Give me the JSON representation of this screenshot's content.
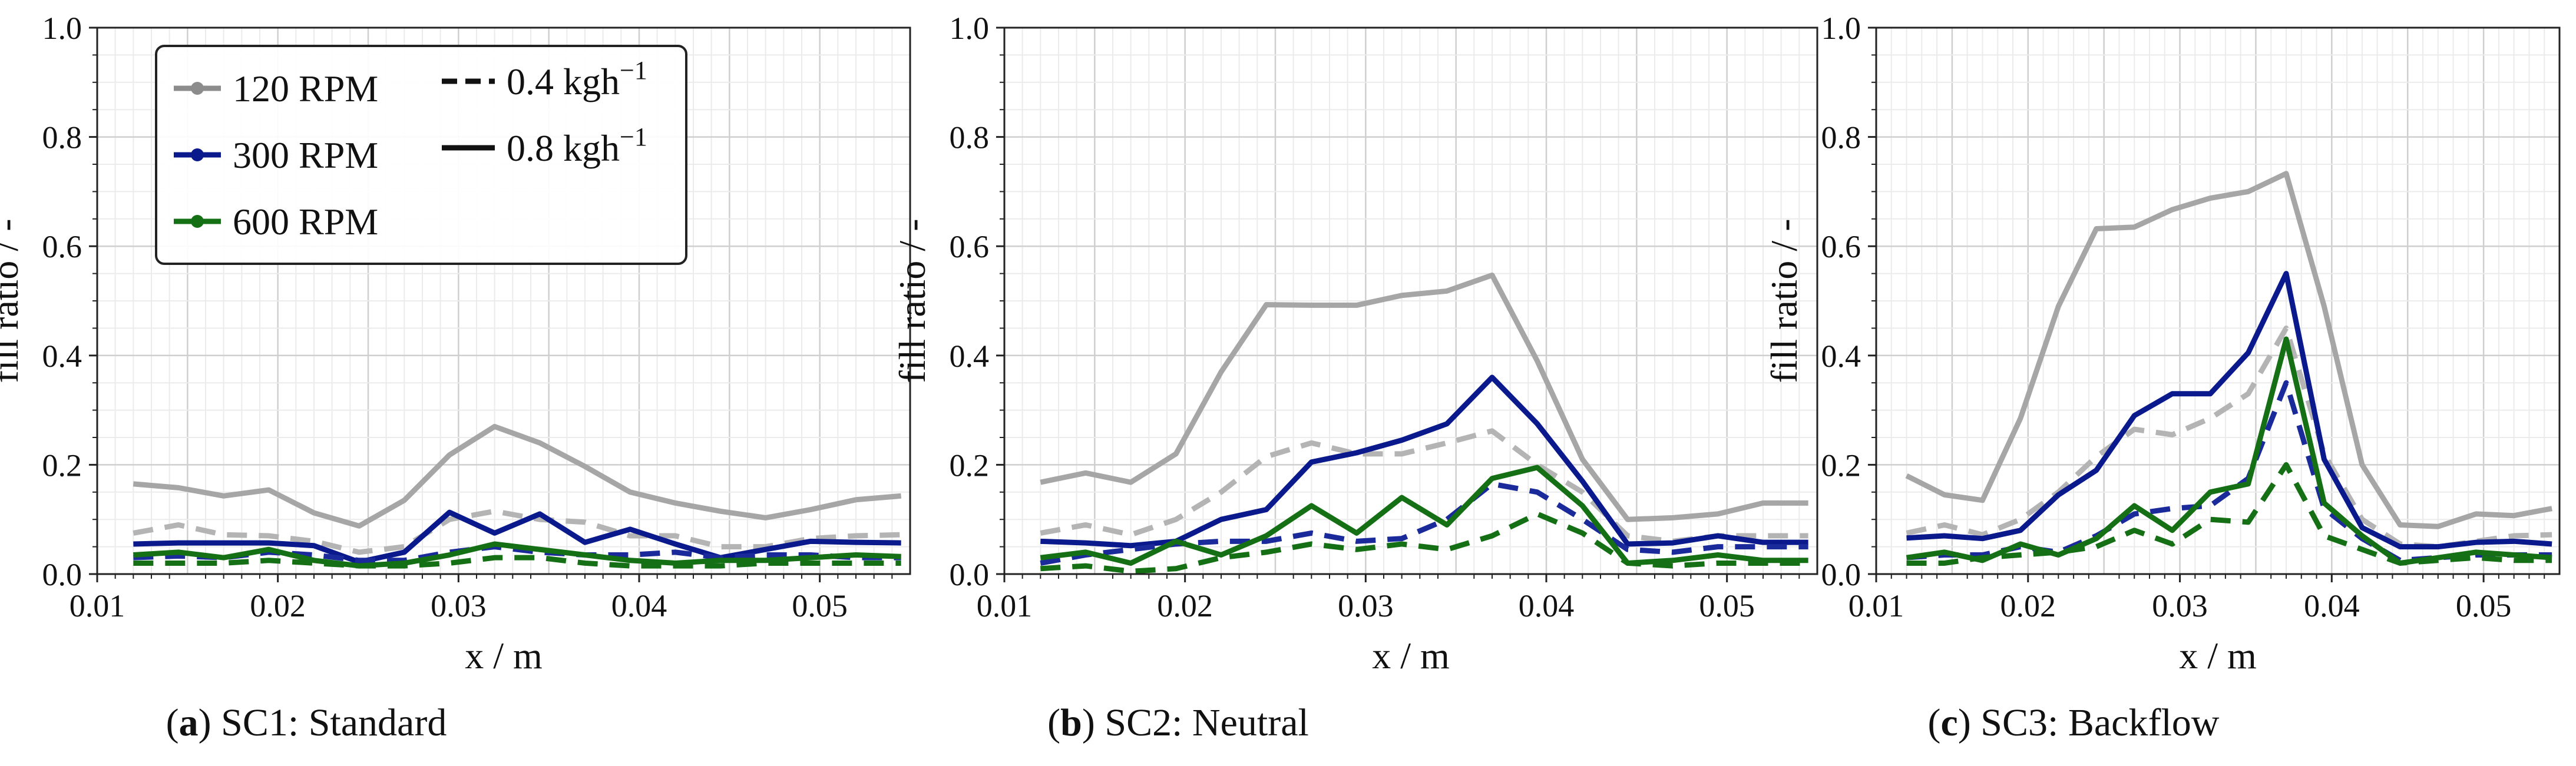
{
  "chart_data": [
    {
      "type": "line",
      "caption": {
        "letter": "a",
        "text": "SC1: Standard"
      },
      "xlabel": "x / m",
      "ylabel": "fill ratio / -",
      "xlim": [
        0.01,
        0.055
      ],
      "ylim": [
        0.0,
        1.0
      ],
      "xticks": [
        0.01,
        0.02,
        0.03,
        0.04,
        0.05
      ],
      "xtick_labels": [
        "0.01",
        "0.02",
        "0.03",
        "0.04",
        "0.05"
      ],
      "yticks": [
        0.0,
        0.2,
        0.4,
        0.6,
        0.8,
        1.0
      ],
      "ytick_labels": [
        "0.0",
        "0.2",
        "0.4",
        "0.6",
        "0.8",
        "1.0"
      ],
      "grid": true,
      "legend_position": "top-left",
      "x": [
        0.012,
        0.0145,
        0.017,
        0.0195,
        0.022,
        0.0245,
        0.027,
        0.0295,
        0.032,
        0.0345,
        0.037,
        0.0395,
        0.042,
        0.0445,
        0.047,
        0.0495,
        0.052,
        0.0545
      ],
      "series": [
        {
          "name": "120 RPM, 0.8 kgh⁻¹",
          "color": "#a6a6a6",
          "style": "solid",
          "values": [
            0.165,
            0.158,
            0.143,
            0.154,
            0.112,
            0.088,
            0.135,
            0.218,
            0.27,
            0.24,
            0.197,
            0.15,
            0.13,
            0.115,
            0.103,
            0.118,
            0.136,
            0.143
          ]
        },
        {
          "name": "120 RPM, 0.4 kgh⁻¹",
          "color": "#b4b4b4",
          "style": "dashed",
          "values": [
            0.075,
            0.09,
            0.072,
            0.07,
            0.06,
            0.04,
            0.05,
            0.1,
            0.115,
            0.1,
            0.095,
            0.07,
            0.07,
            0.05,
            0.05,
            0.065,
            0.07,
            0.072
          ]
        },
        {
          "name": "300 RPM, 0.8 kgh⁻¹",
          "color": "#0a1a8c",
          "style": "solid",
          "values": [
            0.055,
            0.057,
            0.057,
            0.057,
            0.052,
            0.022,
            0.04,
            0.113,
            0.075,
            0.11,
            0.058,
            0.082,
            0.055,
            0.03,
            0.045,
            0.06,
            0.058,
            0.057
          ]
        },
        {
          "name": "300 RPM, 0.4 kgh⁻¹",
          "color": "#1a2a9a",
          "style": "dashed",
          "values": [
            0.03,
            0.033,
            0.03,
            0.04,
            0.035,
            0.025,
            0.025,
            0.04,
            0.05,
            0.04,
            0.035,
            0.035,
            0.04,
            0.03,
            0.035,
            0.035,
            0.03,
            0.03
          ]
        },
        {
          "name": "600 RPM, 0.8 kgh⁻¹",
          "color": "#157015",
          "style": "solid",
          "values": [
            0.035,
            0.04,
            0.03,
            0.045,
            0.025,
            0.015,
            0.02,
            0.035,
            0.055,
            0.045,
            0.035,
            0.025,
            0.02,
            0.025,
            0.025,
            0.03,
            0.035,
            0.032
          ]
        },
        {
          "name": "600 RPM, 0.4 kgh⁻¹",
          "color": "#157015",
          "style": "dashed",
          "values": [
            0.02,
            0.02,
            0.02,
            0.025,
            0.02,
            0.015,
            0.015,
            0.02,
            0.03,
            0.03,
            0.02,
            0.015,
            0.015,
            0.015,
            0.02,
            0.02,
            0.02,
            0.02
          ]
        }
      ]
    },
    {
      "type": "line",
      "caption": {
        "letter": "b",
        "text": "SC2: Neutral"
      },
      "xlabel": "x / m",
      "ylabel": "fill ratio / -",
      "xlim": [
        0.01,
        0.055
      ],
      "ylim": [
        0.0,
        1.0
      ],
      "xticks": [
        0.01,
        0.02,
        0.03,
        0.04,
        0.05
      ],
      "xtick_labels": [
        "0.01",
        "0.02",
        "0.03",
        "0.04",
        "0.05"
      ],
      "yticks": [
        0.0,
        0.2,
        0.4,
        0.6,
        0.8,
        1.0
      ],
      "ytick_labels": [
        "0.0",
        "0.2",
        "0.4",
        "0.6",
        "0.8",
        "1.0"
      ],
      "grid": true,
      "x": [
        0.012,
        0.0145,
        0.017,
        0.0195,
        0.022,
        0.0245,
        0.027,
        0.0295,
        0.032,
        0.0345,
        0.037,
        0.0395,
        0.042,
        0.0445,
        0.047,
        0.0495,
        0.052,
        0.0545
      ],
      "series": [
        {
          "name": "120 RPM, 0.8 kgh⁻¹",
          "color": "#a6a6a6",
          "style": "solid",
          "values": [
            0.168,
            0.185,
            0.168,
            0.22,
            0.37,
            0.493,
            0.492,
            0.492,
            0.51,
            0.518,
            0.547,
            0.39,
            0.21,
            0.1,
            0.103,
            0.11,
            0.13,
            0.13
          ]
        },
        {
          "name": "120 RPM, 0.4 kgh⁻¹",
          "color": "#b4b4b4",
          "style": "dashed",
          "values": [
            0.075,
            0.09,
            0.072,
            0.1,
            0.15,
            0.215,
            0.24,
            0.22,
            0.22,
            0.24,
            0.262,
            0.2,
            0.15,
            0.07,
            0.06,
            0.07,
            0.07,
            0.07
          ]
        },
        {
          "name": "300 RPM, 0.8 kgh⁻¹",
          "color": "#0a1a8c",
          "style": "solid",
          "values": [
            0.06,
            0.057,
            0.052,
            0.06,
            0.1,
            0.118,
            0.205,
            0.222,
            0.245,
            0.275,
            0.36,
            0.275,
            0.17,
            0.055,
            0.057,
            0.07,
            0.058,
            0.058
          ]
        },
        {
          "name": "300 RPM, 0.4 kgh⁻¹",
          "color": "#1a2a9a",
          "style": "dashed",
          "values": [
            0.02,
            0.035,
            0.045,
            0.055,
            0.06,
            0.06,
            0.075,
            0.06,
            0.065,
            0.1,
            0.165,
            0.15,
            0.1,
            0.045,
            0.04,
            0.05,
            0.05,
            0.05
          ]
        },
        {
          "name": "600 RPM, 0.8 kgh⁻¹",
          "color": "#157015",
          "style": "solid",
          "values": [
            0.03,
            0.04,
            0.02,
            0.06,
            0.035,
            0.07,
            0.125,
            0.075,
            0.14,
            0.09,
            0.175,
            0.195,
            0.125,
            0.02,
            0.025,
            0.035,
            0.025,
            0.025
          ]
        },
        {
          "name": "600 RPM, 0.4 kgh⁻¹",
          "color": "#157015",
          "style": "dashed",
          "values": [
            0.01,
            0.015,
            0.005,
            0.01,
            0.03,
            0.04,
            0.055,
            0.045,
            0.055,
            0.045,
            0.07,
            0.11,
            0.075,
            0.02,
            0.015,
            0.02,
            0.02,
            0.02
          ]
        }
      ]
    },
    {
      "type": "line",
      "caption": {
        "letter": "c",
        "text": "SC3: Backflow"
      },
      "xlabel": "x / m",
      "ylabel": "fill ratio / -",
      "xlim": [
        0.01,
        0.055
      ],
      "ylim": [
        0.0,
        1.0
      ],
      "xticks": [
        0.01,
        0.02,
        0.03,
        0.04,
        0.05
      ],
      "xtick_labels": [
        "0.01",
        "0.02",
        "0.03",
        "0.04",
        "0.05"
      ],
      "yticks": [
        0.0,
        0.2,
        0.4,
        0.6,
        0.8,
        1.0
      ],
      "ytick_labels": [
        "0.0",
        "0.2",
        "0.4",
        "0.6",
        "0.8",
        "1.0"
      ],
      "grid": true,
      "x": [
        0.012,
        0.0145,
        0.017,
        0.0195,
        0.022,
        0.0245,
        0.027,
        0.0295,
        0.032,
        0.0345,
        0.037,
        0.0395,
        0.042,
        0.0445,
        0.047,
        0.0495,
        0.052,
        0.0545
      ],
      "series": [
        {
          "name": "120 RPM, 0.8 kgh⁻¹",
          "color": "#a6a6a6",
          "style": "solid",
          "values": [
            0.18,
            0.145,
            0.135,
            0.285,
            0.49,
            0.632,
            0.635,
            0.667,
            0.688,
            0.7,
            0.733,
            0.49,
            0.2,
            0.09,
            0.087,
            0.11,
            0.107,
            0.12
          ]
        },
        {
          "name": "120 RPM, 0.4 kgh⁻¹",
          "color": "#b4b4b4",
          "style": "dashed",
          "values": [
            0.075,
            0.09,
            0.072,
            0.1,
            0.15,
            0.215,
            0.265,
            0.255,
            0.285,
            0.33,
            0.45,
            0.22,
            0.1,
            0.055,
            0.05,
            0.06,
            0.07,
            0.072
          ]
        },
        {
          "name": "300 RPM, 0.8 kgh⁻¹",
          "color": "#0a1a8c",
          "style": "solid",
          "values": [
            0.066,
            0.07,
            0.065,
            0.08,
            0.145,
            0.19,
            0.29,
            0.33,
            0.33,
            0.405,
            0.55,
            0.21,
            0.085,
            0.05,
            0.05,
            0.058,
            0.06,
            0.055
          ]
        },
        {
          "name": "300 RPM, 0.4 kgh⁻¹",
          "color": "#1a2a9a",
          "style": "dashed",
          "values": [
            0.03,
            0.035,
            0.035,
            0.05,
            0.04,
            0.07,
            0.11,
            0.12,
            0.125,
            0.175,
            0.35,
            0.12,
            0.065,
            0.025,
            0.03,
            0.035,
            0.035,
            0.035
          ]
        },
        {
          "name": "600 RPM, 0.8 kgh⁻¹",
          "color": "#157015",
          "style": "solid",
          "values": [
            0.03,
            0.04,
            0.025,
            0.055,
            0.035,
            0.065,
            0.125,
            0.08,
            0.15,
            0.165,
            0.43,
            0.13,
            0.07,
            0.02,
            0.03,
            0.04,
            0.035,
            0.03
          ]
        },
        {
          "name": "600 RPM, 0.4 kgh⁻¹",
          "color": "#157015",
          "style": "dashed",
          "values": [
            0.02,
            0.02,
            0.03,
            0.035,
            0.04,
            0.05,
            0.08,
            0.055,
            0.1,
            0.095,
            0.2,
            0.07,
            0.045,
            0.02,
            0.025,
            0.03,
            0.025,
            0.025
          ]
        }
      ]
    }
  ],
  "legend": {
    "rpm_entries": [
      {
        "label": "120 RPM",
        "color": "#8c8c8c"
      },
      {
        "label": "300 RPM",
        "color": "#0a1a8c"
      },
      {
        "label": "600 RPM",
        "color": "#157015"
      }
    ],
    "style_entries": [
      {
        "label_base": "0.4 kgh",
        "label_sup": "−1",
        "style": "dashed"
      },
      {
        "label_base": "0.8 kgh",
        "label_sup": "−1",
        "style": "solid"
      }
    ]
  }
}
